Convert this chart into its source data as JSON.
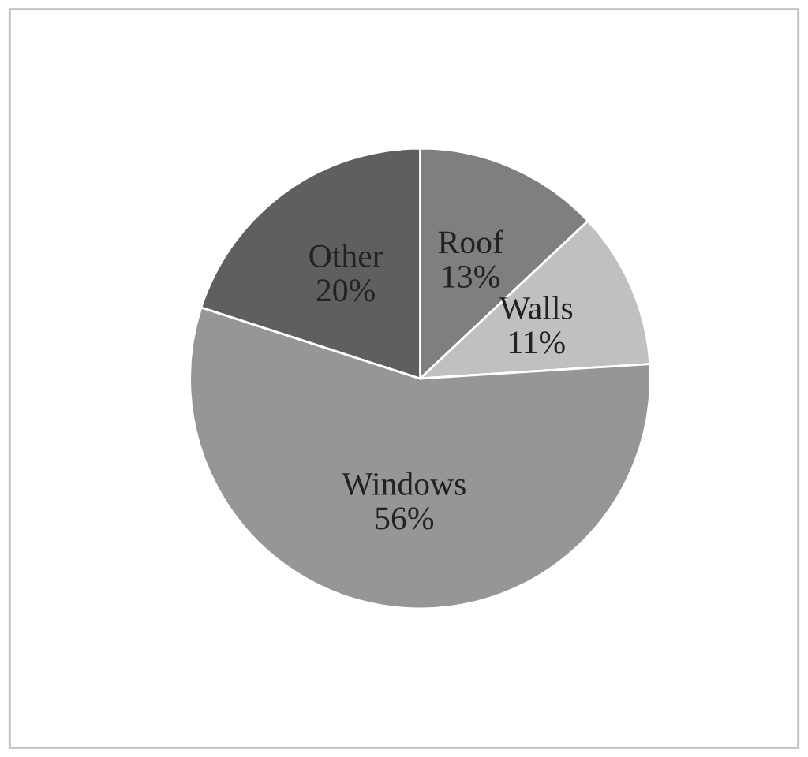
{
  "chart_data": {
    "type": "pie",
    "categories": [
      "Roof",
      "Walls",
      "Windows",
      "Other"
    ],
    "values": [
      13,
      11,
      56,
      20
    ],
    "value_labels": [
      "13%",
      "11%",
      "56%",
      "20%"
    ],
    "colors": [
      "#7f7f7f",
      "#c0c0c0",
      "#969696",
      "#5f5f5f"
    ]
  }
}
